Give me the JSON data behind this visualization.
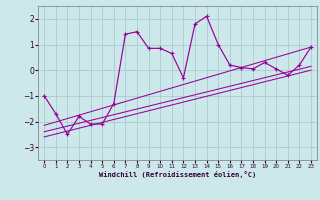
{
  "xlabel": "Windchill (Refroidissement éolien,°C)",
  "background_color": "#cce8ea",
  "grid_color": "#aacccc",
  "line_color": "#990099",
  "x_ticks": [
    0,
    1,
    2,
    3,
    4,
    5,
    6,
    7,
    8,
    9,
    10,
    11,
    12,
    13,
    14,
    15,
    16,
    17,
    18,
    19,
    20,
    21,
    22,
    23
  ],
  "ylim": [
    -3.5,
    2.5
  ],
  "xlim": [
    -0.5,
    23.5
  ],
  "yticks": [
    -3,
    -2,
    -1,
    0,
    1,
    2
  ],
  "series1_x": [
    0,
    1,
    2,
    3,
    4,
    5,
    6,
    7,
    8,
    9,
    10,
    11,
    12,
    13,
    14,
    15,
    16,
    17,
    18,
    19,
    20,
    21,
    22,
    23
  ],
  "series1_y": [
    -1.0,
    -1.7,
    -2.5,
    -1.8,
    -2.1,
    -2.1,
    -1.3,
    1.4,
    1.5,
    0.85,
    0.85,
    0.65,
    -0.3,
    1.8,
    2.1,
    1.0,
    0.2,
    0.1,
    0.05,
    0.3,
    0.05,
    -0.2,
    0.2,
    0.9
  ],
  "line1_x": [
    0,
    23
  ],
  "line1_y": [
    -2.6,
    0.0
  ],
  "line2_x": [
    0,
    23
  ],
  "line2_y": [
    -2.4,
    0.15
  ],
  "line3_x": [
    0,
    23
  ],
  "line3_y": [
    -2.15,
    0.9
  ]
}
